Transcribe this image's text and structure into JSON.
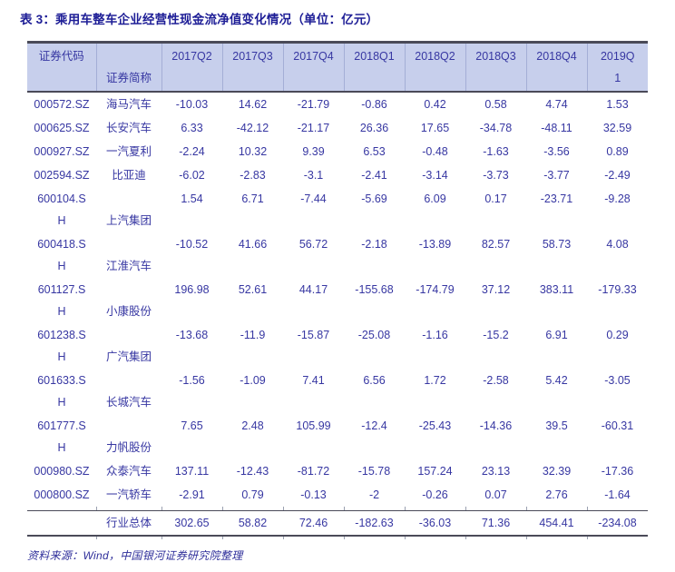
{
  "title": "表 3：乘用车整车企业经营性现金流净值变化情况（单位：亿元）",
  "source_note": "资料来源：Wind，中国银河证券研究院整理",
  "colors": {
    "text": "#3737a2",
    "title": "#1d1d96",
    "header_bg": "#c7cfec",
    "rule": "#4a4a58"
  },
  "table": {
    "header": {
      "code_label": "证券代码",
      "name_label": "证券简称",
      "quarters": [
        [
          "2017Q2"
        ],
        [
          "2017Q3"
        ],
        [
          "2017Q4"
        ],
        [
          "2018Q1"
        ],
        [
          "2018Q2"
        ],
        [
          "2018Q3"
        ],
        [
          "2018Q4"
        ],
        [
          "2019Q",
          "1"
        ]
      ]
    },
    "rows": [
      {
        "code_lines": [
          "000572.SZ"
        ],
        "name": "海马汽车",
        "values": [
          "-10.03",
          "14.62",
          "-21.79",
          "-0.86",
          "0.42",
          "0.58",
          "4.74",
          "1.53"
        ]
      },
      {
        "code_lines": [
          "000625.SZ"
        ],
        "name": "长安汽车",
        "values": [
          "6.33",
          "-42.12",
          "-21.17",
          "26.36",
          "17.65",
          "-34.78",
          "-48.11",
          "32.59"
        ]
      },
      {
        "code_lines": [
          "000927.SZ"
        ],
        "name": "一汽夏利",
        "values": [
          "-2.24",
          "10.32",
          "9.39",
          "6.53",
          "-0.48",
          "-1.63",
          "-3.56",
          "0.89"
        ]
      },
      {
        "code_lines": [
          "002594.SZ"
        ],
        "name": "比亚迪",
        "values": [
          "-6.02",
          "-2.83",
          "-3.1",
          "-2.41",
          "-3.14",
          "-3.73",
          "-3.77",
          "-2.49"
        ]
      },
      {
        "code_lines": [
          "600104.S",
          "H"
        ],
        "name": "上汽集团",
        "values": [
          "1.54",
          "6.71",
          "-7.44",
          "-5.69",
          "6.09",
          "0.17",
          "-23.71",
          "-9.28"
        ]
      },
      {
        "code_lines": [
          "600418.S",
          "H"
        ],
        "name": "江淮汽车",
        "values": [
          "-10.52",
          "41.66",
          "56.72",
          "-2.18",
          "-13.89",
          "82.57",
          "58.73",
          "4.08"
        ]
      },
      {
        "code_lines": [
          "601127.S",
          "H"
        ],
        "name": "小康股份",
        "values": [
          "196.98",
          "52.61",
          "44.17",
          "-155.68",
          "-174.79",
          "37.12",
          "383.11",
          "-179.33"
        ]
      },
      {
        "code_lines": [
          "601238.S",
          "H"
        ],
        "name": "广汽集团",
        "values": [
          "-13.68",
          "-11.9",
          "-15.87",
          "-25.08",
          "-1.16",
          "-15.2",
          "6.91",
          "0.29"
        ]
      },
      {
        "code_lines": [
          "601633.S",
          "H"
        ],
        "name": "长城汽车",
        "values": [
          "-1.56",
          "-1.09",
          "7.41",
          "6.56",
          "1.72",
          "-2.58",
          "5.42",
          "-3.05"
        ]
      },
      {
        "code_lines": [
          "601777.S",
          "H"
        ],
        "name": "力帆股份",
        "values": [
          "7.65",
          "2.48",
          "105.99",
          "-12.4",
          "-25.43",
          "-14.36",
          "39.5",
          "-60.31"
        ]
      },
      {
        "code_lines": [
          "000980.SZ"
        ],
        "name": "众泰汽车",
        "values": [
          "137.11",
          "-12.43",
          "-81.72",
          "-15.78",
          "157.24",
          "23.13",
          "32.39",
          "-17.36"
        ]
      },
      {
        "code_lines": [
          "000800.SZ"
        ],
        "name": "一汽轿车",
        "values": [
          "-2.91",
          "0.79",
          "-0.13",
          "-2",
          "-0.26",
          "0.07",
          "2.76",
          "-1.64"
        ]
      }
    ],
    "total": {
      "name": "行业总体",
      "values": [
        "302.65",
        "58.82",
        "72.46",
        "-182.63",
        "-36.03",
        "71.36",
        "454.41",
        "-234.08"
      ]
    }
  }
}
